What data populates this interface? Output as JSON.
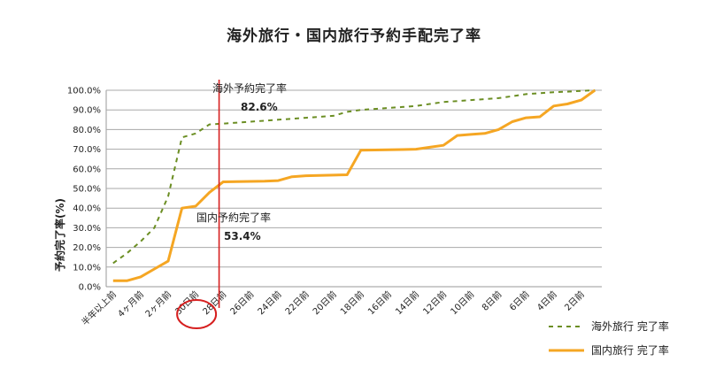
{
  "chart_data": {
    "type": "line",
    "title": "海外旅行・国内旅行予約手配完了率",
    "ylabel": "予約完了率(%)",
    "xlabel": "",
    "ylim": [
      0,
      100
    ],
    "yticks": [
      "0.0%",
      "10.0%",
      "20.0%",
      "30.0%",
      "40.0%",
      "50.0%",
      "60.0%",
      "70.0%",
      "80.0%",
      "90.0%",
      "100.0%"
    ],
    "categories": [
      "半年以上前",
      "",
      "4ヶ月前",
      "",
      "2ヶ月前",
      "",
      "30日前",
      "",
      "28日前",
      "",
      "26日前",
      "",
      "24日前",
      "",
      "22日前",
      "",
      "20日前",
      "",
      "18日前",
      "",
      "16日前",
      "",
      "14日前",
      "",
      "12日前",
      "",
      "10日前",
      "",
      "8日前",
      "",
      "6日前",
      "",
      "4日前",
      "",
      "2日前",
      ""
    ],
    "series": [
      {
        "name": "海外旅行 完了率",
        "color": "#6b8e23",
        "style": "dashed",
        "values": [
          12,
          17,
          23,
          30,
          46,
          76,
          78,
          82.6,
          83,
          83.5,
          84,
          84.5,
          85,
          85.5,
          86,
          86.5,
          87,
          89,
          90,
          90.5,
          91,
          91.5,
          92,
          93,
          94,
          94.5,
          95,
          95.5,
          96,
          97,
          98,
          98.5,
          99,
          99.3,
          99.7,
          100
        ]
      },
      {
        "name": "国内旅行 完了率",
        "color": "#f5a623",
        "style": "solid",
        "values": [
          3,
          3,
          5,
          9,
          13,
          40,
          41,
          48,
          53.4,
          53.5,
          53.6,
          53.7,
          54,
          56,
          56.5,
          56.6,
          56.8,
          57,
          69.5,
          69.6,
          69.7,
          69.8,
          70,
          71,
          72,
          77,
          77.5,
          78,
          80,
          84,
          86,
          86.5,
          92,
          93,
          95,
          100
        ]
      }
    ],
    "annotations": [
      {
        "label": "海外予約完了率",
        "value": "82.6%"
      },
      {
        "label": "国内予約完了率",
        "value": "53.4%"
      }
    ],
    "marker_index": 8,
    "highlight_index": 6,
    "legend": "bottom-right"
  }
}
